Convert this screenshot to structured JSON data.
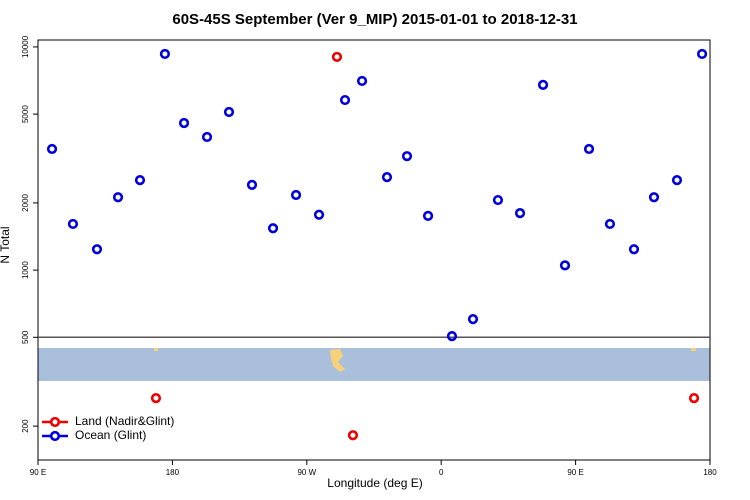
{
  "chart_data": {
    "type": "scatter",
    "title": "60S-45S September (Ver 9_MIP)   2015-01-01 to 2018-12-31",
    "x_label": "Longitude (deg E)",
    "y_label": "N Total",
    "log_y": true,
    "legend": "lower left",
    "xlim": [
      90,
      540
    ],
    "ylim": [
      141,
      10740
    ],
    "xticks": [
      {
        "value": 90,
        "label": "90 E"
      },
      {
        "value": 180,
        "label": "180"
      },
      {
        "value": 270,
        "label": "90 W"
      },
      {
        "value": 360,
        "label": "0"
      },
      {
        "value": 450,
        "label": "90 E"
      },
      {
        "value": 540,
        "label": "180"
      }
    ],
    "yticks": [
      200,
      500,
      1000,
      2000,
      5000,
      10000
    ],
    "hline": 500,
    "series": [
      {
        "name": "Land (Nadir&Glint)",
        "color": "#ee0000",
        "x": [
          290.2,
          169.0,
          300.9,
          529.3
        ],
        "values": [
          9020,
          267,
          182,
          267
        ]
      },
      {
        "name": "Ocean (Glint)",
        "color": "#0000dd",
        "x": [
          99.4,
          113.4,
          129.5,
          143.6,
          158.3,
          175.0,
          187.8,
          203.2,
          217.9,
          233.3,
          247.4,
          262.8,
          278.2,
          295.6,
          307.0,
          323.7,
          337.1,
          351.2,
          367.2,
          381.3,
          398.0,
          412.8,
          428.2,
          442.9,
          459.0,
          473.0,
          489.1,
          502.5,
          517.9,
          534.7
        ],
        "values": [
          3490,
          1610,
          1240,
          2120,
          2530,
          9300,
          4560,
          3950,
          5110,
          2410,
          1540,
          2170,
          1770,
          5780,
          7040,
          2610,
          3240,
          1750,
          506,
          603,
          2060,
          1800,
          6760,
          1050,
          3490,
          1610,
          1240,
          2120,
          2530,
          9300
        ]
      }
    ]
  }
}
